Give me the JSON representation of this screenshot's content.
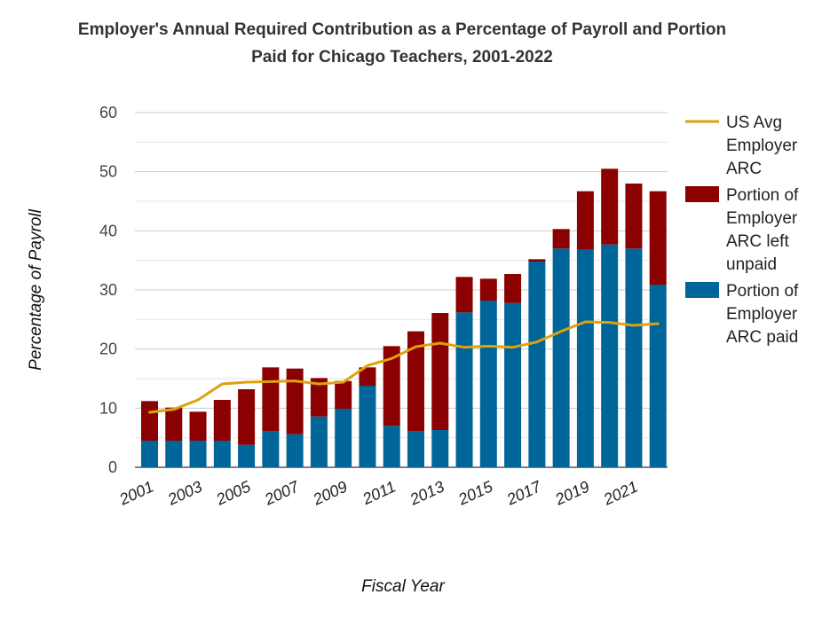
{
  "chart_data": {
    "type": "bar",
    "stacked": true,
    "title_line1": "Employer's Annual Required Contribution as a Percentage of Payroll and Portion",
    "title_line2": "Paid for Chicago Teachers, 2001-2022",
    "xlabel": "Fiscal Year",
    "ylabel": "Percentage of Payroll",
    "ylim": [
      0,
      60
    ],
    "yticks": [
      0,
      10,
      20,
      30,
      40,
      50,
      60
    ],
    "grid": true,
    "legend_position": "right",
    "categories": [
      "2001",
      "2002",
      "2003",
      "2004",
      "2005",
      "2006",
      "2007",
      "2008",
      "2009",
      "2010",
      "2011",
      "2012",
      "2013",
      "2014",
      "2015",
      "2016",
      "2017",
      "2018",
      "2019",
      "2020",
      "2021",
      "2022"
    ],
    "x_tick_labels": [
      "2001",
      "2003",
      "2005",
      "2007",
      "2009",
      "2011",
      "2013",
      "2015",
      "2017",
      "2019",
      "2021"
    ],
    "series": [
      {
        "name": "Portion of Employer ARC paid",
        "kind": "bar",
        "color": "#00669a",
        "values": [
          4.5,
          4.5,
          4.5,
          4.5,
          3.8,
          6.1,
          5.6,
          8.6,
          9.9,
          13.8,
          7.0,
          6.1,
          6.3,
          26.2,
          28.2,
          27.8,
          34.8,
          37.0,
          36.8,
          37.7,
          37.0,
          30.9
        ]
      },
      {
        "name": "Portion of Employer ARC left unpaid",
        "kind": "bar",
        "color": "#8b0000",
        "values": [
          6.7,
          5.6,
          4.9,
          6.9,
          9.4,
          10.8,
          11.1,
          6.5,
          4.7,
          3.1,
          13.5,
          16.9,
          19.8,
          6.0,
          3.7,
          4.9,
          0.4,
          3.3,
          9.9,
          12.8,
          11.0,
          15.8
        ]
      },
      {
        "name": "US Avg Employer ARC",
        "kind": "line",
        "color": "#dea20b",
        "values": [
          9.3,
          9.8,
          11.4,
          14.1,
          14.4,
          14.5,
          14.6,
          14.1,
          14.4,
          17.2,
          18.4,
          20.4,
          21.0,
          20.3,
          20.5,
          20.3,
          21.2,
          23.0,
          24.6,
          24.5,
          24.0,
          24.3
        ]
      }
    ]
  },
  "legend": {
    "line_label": [
      "US Avg",
      "Employer",
      "ARC"
    ],
    "unpaid_label": [
      "Portion of",
      "Employer",
      "ARC left",
      "unpaid"
    ],
    "paid_label": [
      "Portion of",
      "Employer",
      "ARC paid"
    ]
  }
}
